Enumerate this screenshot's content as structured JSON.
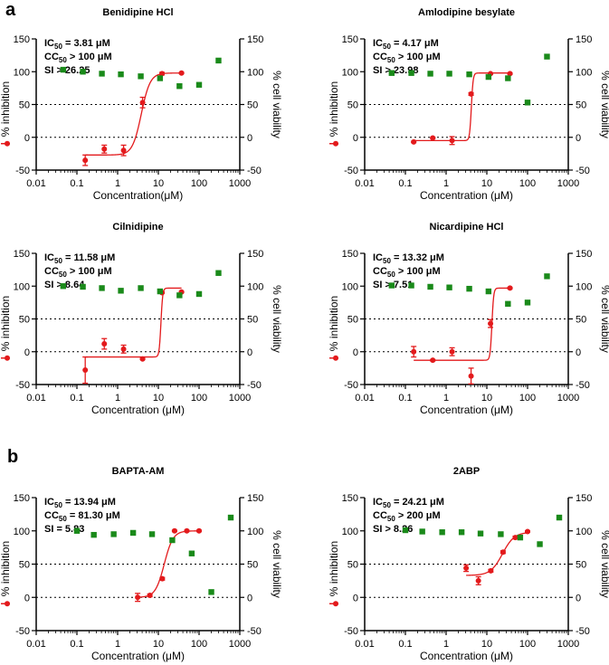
{
  "figure": {
    "panel_labels": [
      "a",
      "b"
    ]
  },
  "colors": {
    "fit": "#e31a1c",
    "inhibition": "#e31a1c",
    "viability": "#1a8a1a",
    "axis": "#000000"
  },
  "chart_data": [
    {
      "type": "scatter",
      "title": "Benidipine HCl",
      "stats": [
        "IC",
        "50",
        " = 3.81 μM",
        "CC",
        "50",
        " > 100 μM",
        "SI > 26.25"
      ],
      "xlabel": "Concentration(μM)",
      "ylabel_left": "% inhibition",
      "ylabel_right": "% cell viability",
      "xscale": "log",
      "xlim": [
        0.01,
        1000
      ],
      "xticks": [
        "0.01",
        "0.1",
        "1",
        "10",
        "100",
        "1000"
      ],
      "ylim_left": [
        -50,
        150
      ],
      "yticks_left": [
        -50,
        0,
        50,
        100,
        150
      ],
      "ylim_right": [
        -50,
        150
      ],
      "yticks_right": [
        -50,
        0,
        50,
        100,
        150
      ],
      "reference_lines": [
        0,
        50
      ],
      "ic50": 3.81,
      "fit_bottom": -27,
      "fit_top": 98,
      "hill": 4,
      "inhibition": [
        {
          "x": 0.16,
          "y": -35,
          "err": 8
        },
        {
          "x": 0.47,
          "y": -18,
          "err": 6
        },
        {
          "x": 1.4,
          "y": -20,
          "err": 8
        },
        {
          "x": 4.1,
          "y": 53,
          "err": 8
        },
        {
          "x": 12.3,
          "y": 97,
          "err": 2
        },
        {
          "x": 37,
          "y": 98,
          "err": 1
        }
      ],
      "viability": [
        {
          "x": 0.046,
          "y": 103
        },
        {
          "x": 0.14,
          "y": 100
        },
        {
          "x": 0.41,
          "y": 97
        },
        {
          "x": 1.2,
          "y": 96
        },
        {
          "x": 3.7,
          "y": 93
        },
        {
          "x": 11,
          "y": 90
        },
        {
          "x": 33,
          "y": 78
        },
        {
          "x": 100,
          "y": 80
        },
        {
          "x": 300,
          "y": 117
        }
      ]
    },
    {
      "type": "scatter",
      "title": "Amlodipine besylate",
      "stats": [
        "IC",
        "50",
        " = 4.17 μM",
        "CC",
        "50",
        " > 100 μM",
        "SI > 23.98"
      ],
      "xlabel": "Concentration (μM)",
      "ylabel_left": "% inhibition",
      "ylabel_right": "% cell viability",
      "xscale": "log",
      "xlim": [
        0.01,
        1000
      ],
      "xticks": [
        "0.01",
        "0.1",
        "1",
        "10",
        "100",
        "1000"
      ],
      "ylim_left": [
        -50,
        150
      ],
      "yticks_left": [
        -50,
        0,
        50,
        100,
        150
      ],
      "ylim_right": [
        -50,
        150
      ],
      "yticks_right": [
        -50,
        0,
        50,
        100,
        150
      ],
      "reference_lines": [
        0,
        50
      ],
      "ic50": 4.17,
      "fit_bottom": -5,
      "fit_top": 98,
      "hill": 20,
      "inhibition": [
        {
          "x": 0.16,
          "y": -7,
          "err": 1
        },
        {
          "x": 0.47,
          "y": -1,
          "err": 1
        },
        {
          "x": 1.4,
          "y": -5,
          "err": 6
        },
        {
          "x": 4.1,
          "y": 66,
          "err": 2
        },
        {
          "x": 12.3,
          "y": 97,
          "err": 1
        },
        {
          "x": 37,
          "y": 97,
          "err": 1
        }
      ],
      "viability": [
        {
          "x": 0.046,
          "y": 98
        },
        {
          "x": 0.14,
          "y": 98
        },
        {
          "x": 0.41,
          "y": 97
        },
        {
          "x": 1.2,
          "y": 97
        },
        {
          "x": 3.7,
          "y": 96
        },
        {
          "x": 11,
          "y": 92
        },
        {
          "x": 33,
          "y": 90
        },
        {
          "x": 100,
          "y": 53
        },
        {
          "x": 300,
          "y": 123
        }
      ]
    },
    {
      "type": "scatter",
      "title": "Cilnidipine",
      "stats": [
        "IC",
        "50",
        " = 11.58 μM",
        "CC",
        "50",
        " > 100 μM",
        "SI > 8.64"
      ],
      "xlabel": "Concentration (μM)",
      "ylabel_left": "% inhibition",
      "ylabel_right": "% cell viability",
      "xscale": "log",
      "xlim": [
        0.01,
        1000
      ],
      "xticks": [
        "0.01",
        "0.1",
        "1",
        "10",
        "100",
        "1000"
      ],
      "ylim_left": [
        -50,
        150
      ],
      "yticks_left": [
        -50,
        0,
        50,
        100,
        150
      ],
      "ylim_right": [
        -50,
        150
      ],
      "yticks_right": [
        -50,
        0,
        50,
        100,
        150
      ],
      "reference_lines": [
        0,
        50
      ],
      "ic50": 11.58,
      "fit_bottom": -8,
      "fit_top": 97,
      "hill": 20,
      "inhibition": [
        {
          "x": 0.16,
          "y": -28,
          "err": 20
        },
        {
          "x": 0.47,
          "y": 12,
          "err": 8
        },
        {
          "x": 1.4,
          "y": 4,
          "err": 6
        },
        {
          "x": 4.1,
          "y": -11,
          "err": 1
        },
        {
          "x": 12.3,
          "y": 90,
          "err": 1
        },
        {
          "x": 37,
          "y": 91,
          "err": 1
        }
      ],
      "viability": [
        {
          "x": 0.046,
          "y": 100
        },
        {
          "x": 0.14,
          "y": 99
        },
        {
          "x": 0.41,
          "y": 97
        },
        {
          "x": 1.2,
          "y": 93
        },
        {
          "x": 3.7,
          "y": 97
        },
        {
          "x": 11,
          "y": 92
        },
        {
          "x": 33,
          "y": 86
        },
        {
          "x": 100,
          "y": 88
        },
        {
          "x": 300,
          "y": 120
        }
      ]
    },
    {
      "type": "scatter",
      "title": "Nicardipine HCl",
      "stats": [
        "IC",
        "50",
        " = 13.32 μM",
        "CC",
        "50",
        " > 100 μM",
        "SI > 7.51"
      ],
      "xlabel": "Concentration (μM)",
      "ylabel_left": "% inhibition",
      "ylabel_right": "% cell viability",
      "xscale": "log",
      "xlim": [
        0.01,
        1000
      ],
      "xticks": [
        "0.01",
        "0.1",
        "1",
        "10",
        "100",
        "1000"
      ],
      "ylim_left": [
        -50,
        150
      ],
      "yticks_left": [
        -50,
        0,
        50,
        100,
        150
      ],
      "ylim_right": [
        -50,
        150
      ],
      "yticks_right": [
        -50,
        0,
        50,
        100,
        150
      ],
      "reference_lines": [
        0,
        50
      ],
      "ic50": 13.32,
      "fit_bottom": -13,
      "fit_top": 97,
      "hill": 20,
      "inhibition": [
        {
          "x": 0.16,
          "y": 0,
          "err": 8
        },
        {
          "x": 0.47,
          "y": -13,
          "err": 1
        },
        {
          "x": 1.4,
          "y": 0,
          "err": 6
        },
        {
          "x": 4.1,
          "y": -37,
          "err": 12
        },
        {
          "x": 12.3,
          "y": 43,
          "err": 6
        },
        {
          "x": 37,
          "y": 97,
          "err": 1
        }
      ],
      "viability": [
        {
          "x": 0.046,
          "y": 101
        },
        {
          "x": 0.14,
          "y": 101
        },
        {
          "x": 0.41,
          "y": 99
        },
        {
          "x": 1.2,
          "y": 98
        },
        {
          "x": 3.7,
          "y": 96
        },
        {
          "x": 11,
          "y": 92
        },
        {
          "x": 33,
          "y": 73
        },
        {
          "x": 100,
          "y": 75
        },
        {
          "x": 300,
          "y": 115
        }
      ]
    },
    {
      "type": "scatter",
      "title": "BAPTA-AM",
      "stats": [
        "IC",
        "50",
        " = 13.94 μM",
        "CC",
        "50",
        " = 81.30 μM",
        "SI = 5.83"
      ],
      "xlabel": "Concentration (μM)",
      "ylabel_left": "% inhibition",
      "ylabel_right": "% cell viability",
      "xscale": "log",
      "xlim": [
        0.01,
        1000
      ],
      "xticks": [
        "0.01",
        "0.1",
        "1",
        "10",
        "100",
        "1000"
      ],
      "ylim_left": [
        -50,
        150
      ],
      "yticks_left": [
        -50,
        0,
        50,
        100,
        150
      ],
      "ylim_right": [
        -50,
        150
      ],
      "yticks_right": [
        -50,
        0,
        50,
        100,
        150
      ],
      "reference_lines": [
        0,
        50
      ],
      "ic50": 13.94,
      "fit_bottom": 0,
      "fit_top": 100,
      "hill": 4,
      "inhibition": [
        {
          "x": 3.1,
          "y": 0,
          "err": 6
        },
        {
          "x": 6.2,
          "y": 3,
          "err": 2
        },
        {
          "x": 12.5,
          "y": 28,
          "err": 2
        },
        {
          "x": 25,
          "y": 100,
          "err": 1
        },
        {
          "x": 50,
          "y": 100,
          "err": 1
        },
        {
          "x": 100,
          "y": 100,
          "err": 1
        }
      ],
      "viability": [
        {
          "x": 0.1,
          "y": 100
        },
        {
          "x": 0.26,
          "y": 94
        },
        {
          "x": 0.8,
          "y": 95
        },
        {
          "x": 2.4,
          "y": 97
        },
        {
          "x": 7,
          "y": 95
        },
        {
          "x": 22,
          "y": 86
        },
        {
          "x": 66,
          "y": 66
        },
        {
          "x": 200,
          "y": 8
        },
        {
          "x": 600,
          "y": 120
        }
      ]
    },
    {
      "type": "scatter",
      "title": "2ABP",
      "stats": [
        "IC",
        "50",
        " = 24.21 μM",
        "CC",
        "50",
        " > 200 μM",
        "SI > 8.26"
      ],
      "xlabel": "Concentration (μM)",
      "ylabel_left": "% inhibition",
      "ylabel_right": "% cell viability",
      "xscale": "log",
      "xlim": [
        0.01,
        1000
      ],
      "xticks": [
        "0.01",
        "0.1",
        "1",
        "10",
        "100",
        "1000"
      ],
      "ylim_left": [
        -50,
        150
      ],
      "yticks_left": [
        -50,
        0,
        50,
        100,
        150
      ],
      "ylim_right": [
        -50,
        150
      ],
      "yticks_right": [
        -50,
        0,
        50,
        100,
        150
      ],
      "reference_lines": [
        0,
        50
      ],
      "ic50": 24.21,
      "fit_bottom": 33,
      "fit_top": 98,
      "hill": 3,
      "inhibition": [
        {
          "x": 3.1,
          "y": 44,
          "err": 5
        },
        {
          "x": 6.2,
          "y": 25,
          "err": 6
        },
        {
          "x": 12.5,
          "y": 40,
          "err": 2
        },
        {
          "x": 25,
          "y": 68,
          "err": 2
        },
        {
          "x": 50,
          "y": 90,
          "err": 2
        },
        {
          "x": 100,
          "y": 99,
          "err": 1
        }
      ],
      "viability": [
        {
          "x": 0.1,
          "y": 101
        },
        {
          "x": 0.26,
          "y": 99
        },
        {
          "x": 0.8,
          "y": 98
        },
        {
          "x": 2.4,
          "y": 98
        },
        {
          "x": 7,
          "y": 96
        },
        {
          "x": 22,
          "y": 95
        },
        {
          "x": 66,
          "y": 90
        },
        {
          "x": 200,
          "y": 80
        },
        {
          "x": 600,
          "y": 120
        }
      ]
    }
  ]
}
